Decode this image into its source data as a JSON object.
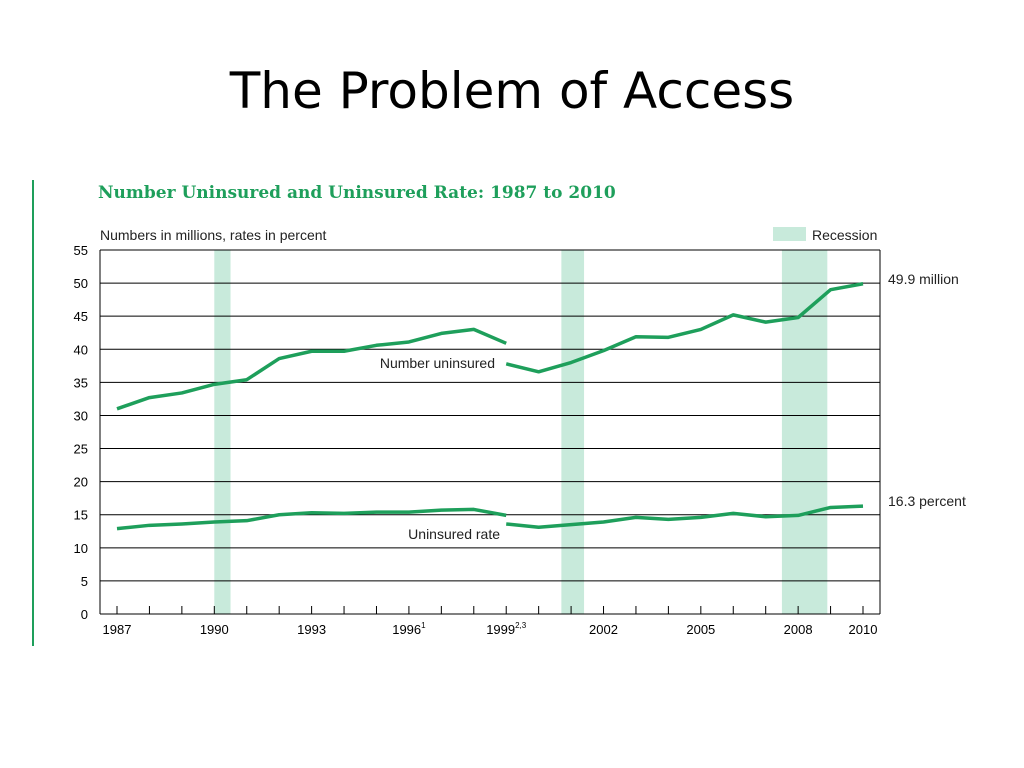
{
  "slide": {
    "title": "The Problem of Access"
  },
  "chart_data": {
    "type": "line",
    "title": "Number Uninsured and Uninsured Rate: 1987 to 2010",
    "subtitle": "Numbers in millions, rates in percent",
    "legend": {
      "label": "Recession",
      "position": "top-right"
    },
    "colors": {
      "line": "#1e9f5b",
      "recession": "#c8eadb",
      "title": "#1e9f5b"
    },
    "ylim": [
      0,
      55
    ],
    "yticks": [
      0,
      5,
      10,
      15,
      20,
      25,
      30,
      35,
      40,
      45,
      50,
      55
    ],
    "xlim": [
      1987,
      2010
    ],
    "xtick_labels": [
      {
        "year": 1987,
        "label": "1987",
        "sup": ""
      },
      {
        "year": 1990,
        "label": "1990",
        "sup": ""
      },
      {
        "year": 1993,
        "label": "1993",
        "sup": ""
      },
      {
        "year": 1996,
        "label": "1996",
        "sup": "1"
      },
      {
        "year": 1999,
        "label": "1999",
        "sup": "2,3"
      },
      {
        "year": 2002,
        "label": "2002",
        "sup": ""
      },
      {
        "year": 2005,
        "label": "2005",
        "sup": ""
      },
      {
        "year": 2008,
        "label": "2008",
        "sup": ""
      },
      {
        "year": 2010,
        "label": "2010",
        "sup": ""
      }
    ],
    "recessions": [
      {
        "start": 1990.0,
        "end": 1990.5
      },
      {
        "start": 2000.7,
        "end": 2001.4
      },
      {
        "start": 2007.5,
        "end": 2008.9
      }
    ],
    "series": [
      {
        "name": "Number uninsured",
        "end_label": "49.9 million",
        "segments": [
          [
            [
              1987,
              31.0
            ],
            [
              1988,
              32.7
            ],
            [
              1989,
              33.4
            ],
            [
              1990,
              34.7
            ],
            [
              1991,
              35.4
            ],
            [
              1992,
              38.6
            ],
            [
              1993,
              39.7
            ],
            [
              1994,
              39.7
            ],
            [
              1995,
              40.6
            ],
            [
              1996,
              41.1
            ],
            [
              1997,
              42.4
            ],
            [
              1998,
              43.0
            ],
            [
              1999,
              40.9
            ]
          ],
          [
            [
              1999,
              37.8
            ],
            [
              2000,
              36.6
            ],
            [
              2001,
              38.0
            ],
            [
              2002,
              39.8
            ],
            [
              2003,
              41.9
            ],
            [
              2004,
              41.8
            ],
            [
              2005,
              43.0
            ],
            [
              2006,
              45.2
            ],
            [
              2007,
              44.1
            ],
            [
              2008,
              44.8
            ],
            [
              2009,
              49.0
            ],
            [
              2010,
              49.9
            ]
          ]
        ]
      },
      {
        "name": "Uninsured rate",
        "end_label": "16.3 percent",
        "segments": [
          [
            [
              1987,
              12.9
            ],
            [
              1988,
              13.4
            ],
            [
              1989,
              13.6
            ],
            [
              1990,
              13.9
            ],
            [
              1991,
              14.1
            ],
            [
              1992,
              15.0
            ],
            [
              1993,
              15.3
            ],
            [
              1994,
              15.2
            ],
            [
              1995,
              15.4
            ],
            [
              1996,
              15.4
            ],
            [
              1997,
              15.7
            ],
            [
              1998,
              15.8
            ],
            [
              1999,
              14.9
            ]
          ],
          [
            [
              1999,
              13.6
            ],
            [
              2000,
              13.1
            ],
            [
              2001,
              13.5
            ],
            [
              2002,
              13.9
            ],
            [
              2003,
              14.6
            ],
            [
              2004,
              14.3
            ],
            [
              2005,
              14.6
            ],
            [
              2006,
              15.2
            ],
            [
              2007,
              14.7
            ],
            [
              2008,
              14.9
            ],
            [
              2009,
              16.1
            ],
            [
              2010,
              16.3
            ]
          ]
        ]
      }
    ]
  }
}
